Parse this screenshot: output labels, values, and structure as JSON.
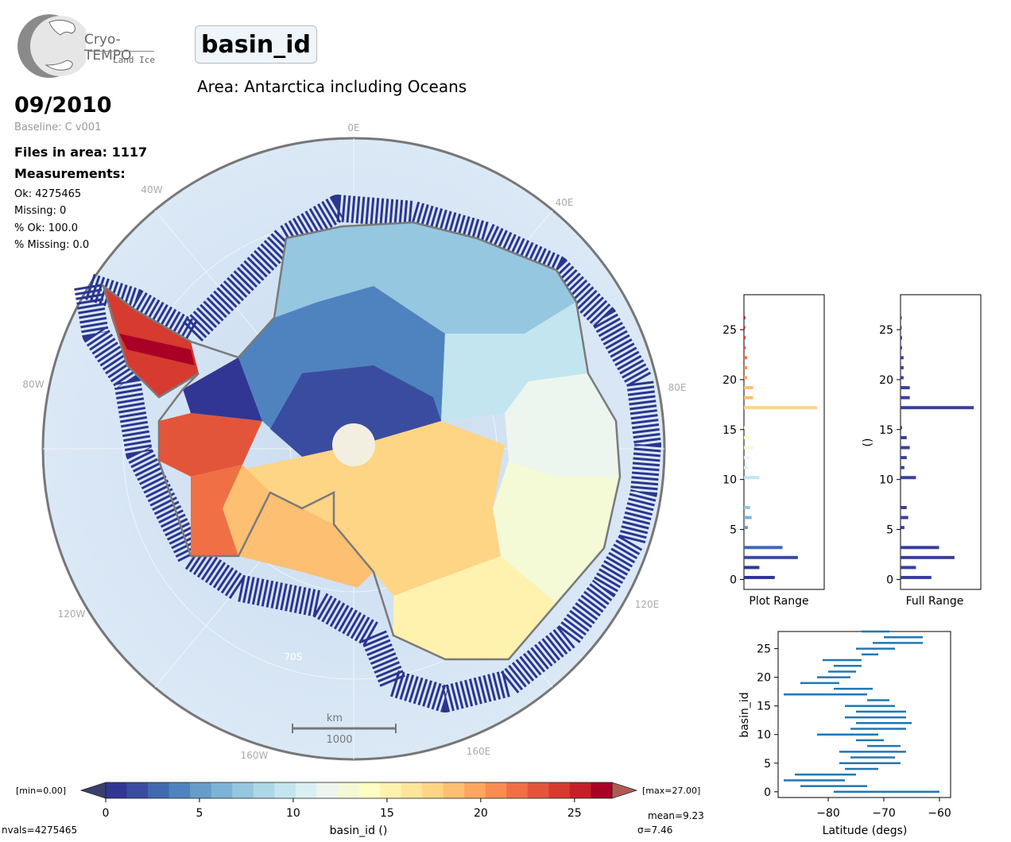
{
  "logo": {
    "name": "Cryo-TEMPO",
    "sub": "Land Ice"
  },
  "title": "basin_id",
  "subtitle": "Area: Antarctica including Oceans",
  "date": "09/2010",
  "baseline": "Baseline: C v001",
  "files": "Files in area: 1117",
  "measurements_label": "Measurements:",
  "stats": [
    "Ok: 4275465",
    "Missing: 0",
    "% Ok: 100.0",
    "% Missing: 0.0"
  ],
  "map": {
    "lon_labels": [
      "0E",
      "40E",
      "80E",
      "120E",
      "160E",
      "160W",
      "120W",
      "80W",
      "40W"
    ],
    "lat_label": "70S",
    "scale_top": "km",
    "scale_bottom": "1000"
  },
  "colorbar": {
    "min_label": "[min=0.00]",
    "max_label": "[max=27.00]",
    "ticks": [
      "0",
      "5",
      "10",
      "15",
      "20",
      "25"
    ],
    "label": "basin_id ()",
    "colors": [
      "#313695",
      "#3a4ca0",
      "#4169b0",
      "#4f83bf",
      "#659cc9",
      "#7db3d6",
      "#95c7e0",
      "#acd8e8",
      "#c3e5ef",
      "#d9eff3",
      "#ecf6ef",
      "#f4f9d6",
      "#fdfec2",
      "#fff2ae",
      "#fee59a",
      "#fed485",
      "#fdbf71",
      "#fca660",
      "#f88c51",
      "#f06f45",
      "#e3553a",
      "#d73a2f",
      "#c52028",
      "#a90026"
    ]
  },
  "footer": {
    "nvals": "nvals=4275465",
    "mean": "mean=9.23",
    "sigma": "σ=7.46"
  },
  "chart_data": [
    {
      "type": "bar",
      "orientation": "horizontal",
      "xlabel": "Plot Range",
      "ylabel": "",
      "ylim": [
        -1,
        28.5
      ],
      "yticks": [
        "0",
        "5",
        "10",
        "15",
        "20",
        "25"
      ],
      "bins": [
        0,
        1,
        2,
        3,
        4,
        5,
        6,
        7,
        8,
        9,
        10,
        11,
        12,
        13,
        14,
        15,
        16,
        17,
        18,
        19,
        20,
        21,
        22,
        23,
        24,
        25,
        26,
        27
      ],
      "values": [
        0.4,
        0.2,
        0.7,
        0.5,
        0.0,
        0.05,
        0.1,
        0.08,
        0.0,
        0.0,
        0.2,
        0.05,
        0.08,
        0.12,
        0.08,
        0.02,
        0.0,
        0.95,
        0.12,
        0.12,
        0.04,
        0.04,
        0.04,
        0.02,
        0.02,
        0.01,
        0.01,
        0.0
      ]
    },
    {
      "type": "bar",
      "orientation": "horizontal",
      "xlabel": "Full Range",
      "ylabel": "()",
      "ylim": [
        -1,
        28.5
      ],
      "yticks": [
        "0",
        "5",
        "10",
        "15",
        "20",
        "25"
      ],
      "bins": [
        0,
        1,
        2,
        3,
        4,
        5,
        6,
        7,
        8,
        9,
        10,
        11,
        12,
        13,
        14,
        15,
        16,
        17,
        18,
        19,
        20,
        21,
        22,
        23,
        24,
        25,
        26,
        27
      ],
      "values": [
        0.4,
        0.2,
        0.7,
        0.5,
        0.0,
        0.05,
        0.1,
        0.08,
        0.0,
        0.0,
        0.2,
        0.05,
        0.08,
        0.12,
        0.08,
        0.02,
        0.0,
        0.95,
        0.12,
        0.12,
        0.04,
        0.04,
        0.04,
        0.02,
        0.02,
        0.01,
        0.01,
        0.0
      ]
    },
    {
      "type": "range",
      "xlabel": "Latitude (degs)",
      "ylabel": "basin_id",
      "xlim": [
        -89,
        -58
      ],
      "ylim": [
        -1,
        28
      ],
      "xticks": [
        "−80",
        "−70",
        "−60"
      ],
      "yticks": [
        "0",
        "5",
        "10",
        "15",
        "20",
        "25"
      ],
      "ranges": [
        [
          -79,
          -60
        ],
        [
          -85,
          -73
        ],
        [
          -88,
          -77
        ],
        [
          -86,
          -75
        ],
        [
          -77,
          -71
        ],
        [
          -78,
          -67
        ],
        [
          -76,
          -68
        ],
        [
          -78,
          -66
        ],
        [
          -73,
          -67
        ],
        [
          -75,
          -70
        ],
        [
          -82,
          -71
        ],
        [
          -76,
          -66
        ],
        [
          -75,
          -65
        ],
        [
          -77,
          -66
        ],
        [
          -75,
          -66
        ],
        [
          -77,
          -68
        ],
        [
          -73,
          -69
        ],
        [
          -88,
          -73
        ],
        [
          -79,
          -72
        ],
        [
          -85,
          -78
        ],
        [
          -82,
          -76
        ],
        [
          -80,
          -75
        ],
        [
          -79,
          -74
        ],
        [
          -81,
          -74
        ],
        [
          -74,
          -71
        ],
        [
          -75,
          -68
        ],
        [
          -72,
          -63
        ],
        [
          -70,
          -63
        ],
        [
          -74,
          -69
        ]
      ]
    }
  ]
}
